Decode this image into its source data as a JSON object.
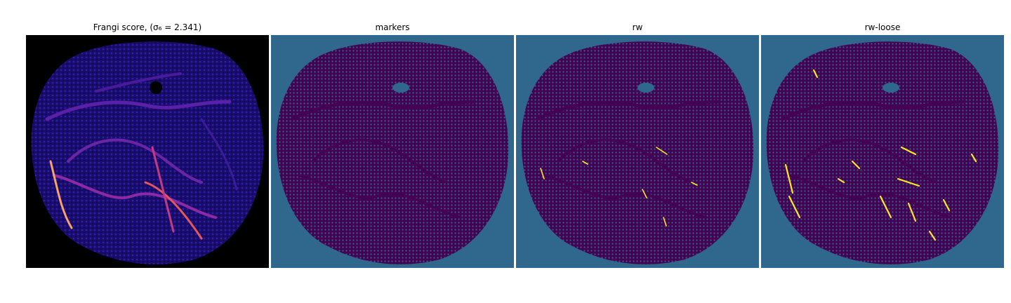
{
  "figure": {
    "panels": [
      {
        "title": "Frangi score, (σ₆ = 2.341)",
        "colormap": "magma",
        "background": "#000000"
      },
      {
        "title": "markers",
        "colormap": "viridis",
        "background": "#30678d",
        "foreground": "#440154"
      },
      {
        "title": "rw",
        "colormap": "viridis",
        "background": "#30678d",
        "foreground": "#440154",
        "highlight": "#fde725"
      },
      {
        "title": "rw-loose",
        "colormap": "viridis",
        "background": "#30678d",
        "foreground": "#440154",
        "highlight": "#fde725"
      }
    ]
  }
}
